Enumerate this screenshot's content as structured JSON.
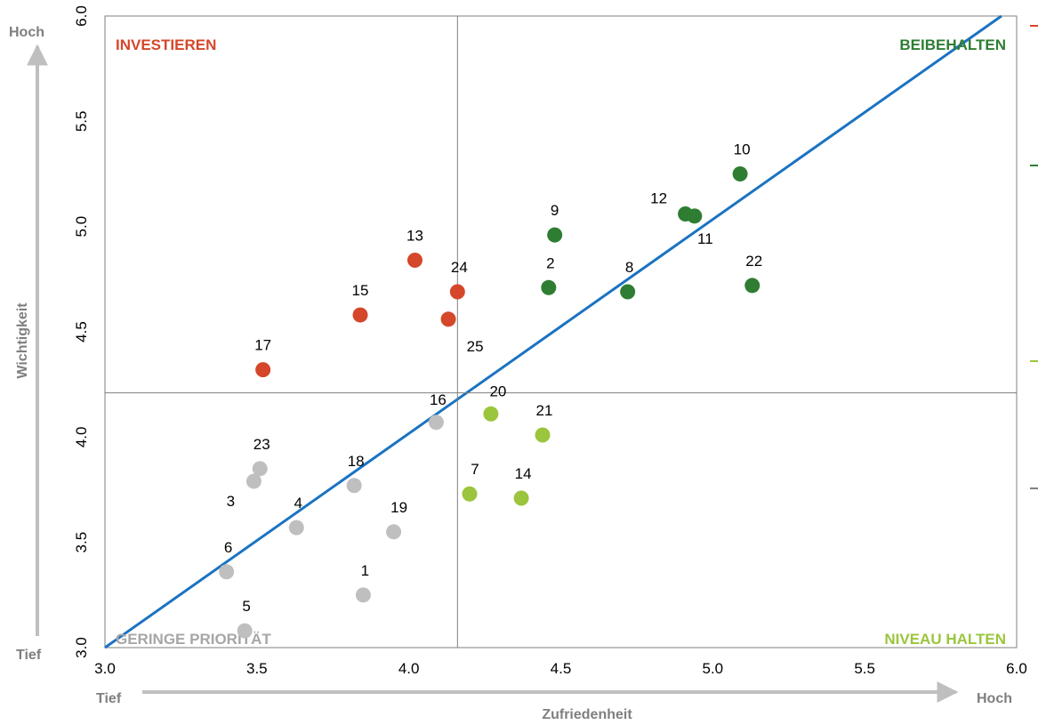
{
  "chart_data": {
    "type": "scatter",
    "xlabel": "Zufriedenheit",
    "ylabel": "Wichtigkeit",
    "xlim": [
      3.0,
      6.0
    ],
    "ylim": [
      3.0,
      6.0
    ],
    "x_ticks": [
      "3.0",
      "3.5",
      "4.0",
      "4.5",
      "5.0",
      "5.5",
      "6.0"
    ],
    "y_ticks": [
      "3.0",
      "3.5",
      "4.0",
      "4.5",
      "5.0",
      "5.5",
      "6.0"
    ],
    "x_axis_ends": {
      "low": "Tief",
      "high": "Hoch"
    },
    "y_axis_ends": {
      "low": "Tief",
      "high": "Hoch"
    },
    "quadrant_split": {
      "x": 4.16,
      "y": 4.21
    },
    "diagonal": {
      "from": [
        3.0,
        3.0
      ],
      "to": [
        5.95,
        6.0
      ],
      "color": "#1a73c2"
    },
    "grid": false,
    "quadrants": [
      {
        "label": "INVESTIEREN",
        "position": "top-left",
        "color": "#d4472a"
      },
      {
        "label": "BEIBEHALTEN",
        "position": "top-right",
        "color": "#2e7d32"
      },
      {
        "label": "GERINGE PRIORITÄT",
        "position": "bottom-left",
        "color": "#a6a6a6"
      },
      {
        "label": "NIVEAU HALTEN",
        "position": "bottom-right",
        "color": "#9bc53d"
      }
    ],
    "series": [
      {
        "group": "investieren",
        "color": "#d4472a",
        "points": [
          {
            "label": "13",
            "x": 4.02,
            "y": 4.84
          },
          {
            "label": "24",
            "x": 4.16,
            "y": 4.69
          },
          {
            "label": "25",
            "x": 4.13,
            "y": 4.56
          },
          {
            "label": "15",
            "x": 3.84,
            "y": 4.58
          },
          {
            "label": "17",
            "x": 3.52,
            "y": 4.32
          }
        ]
      },
      {
        "group": "beibehalten",
        "color": "#2e7d32",
        "points": [
          {
            "label": "10",
            "x": 5.09,
            "y": 5.25
          },
          {
            "label": "12",
            "x": 4.91,
            "y": 5.06
          },
          {
            "label": "11",
            "x": 4.94,
            "y": 5.05
          },
          {
            "label": "9",
            "x": 4.48,
            "y": 4.96
          },
          {
            "label": "2",
            "x": 4.46,
            "y": 4.71
          },
          {
            "label": "8",
            "x": 4.72,
            "y": 4.69
          },
          {
            "label": "22",
            "x": 5.13,
            "y": 4.72
          }
        ]
      },
      {
        "group": "niveau-halten",
        "color": "#9bc53d",
        "points": [
          {
            "label": "20",
            "x": 4.27,
            "y": 4.11
          },
          {
            "label": "21",
            "x": 4.44,
            "y": 4.01
          },
          {
            "label": "7",
            "x": 4.2,
            "y": 3.73
          },
          {
            "label": "14",
            "x": 4.37,
            "y": 3.71
          }
        ]
      },
      {
        "group": "geringe-prioritaet",
        "color": "#bfbfbf",
        "points": [
          {
            "label": "16",
            "x": 4.09,
            "y": 4.07
          },
          {
            "label": "23",
            "x": 3.51,
            "y": 3.85
          },
          {
            "label": "3",
            "x": 3.49,
            "y": 3.79
          },
          {
            "label": "18",
            "x": 3.82,
            "y": 3.77
          },
          {
            "label": "4",
            "x": 3.63,
            "y": 3.57
          },
          {
            "label": "19",
            "x": 3.95,
            "y": 3.55
          },
          {
            "label": "6",
            "x": 3.4,
            "y": 3.36
          },
          {
            "label": "1",
            "x": 3.85,
            "y": 3.25
          },
          {
            "label": "5",
            "x": 3.46,
            "y": 3.08
          }
        ]
      }
    ]
  }
}
